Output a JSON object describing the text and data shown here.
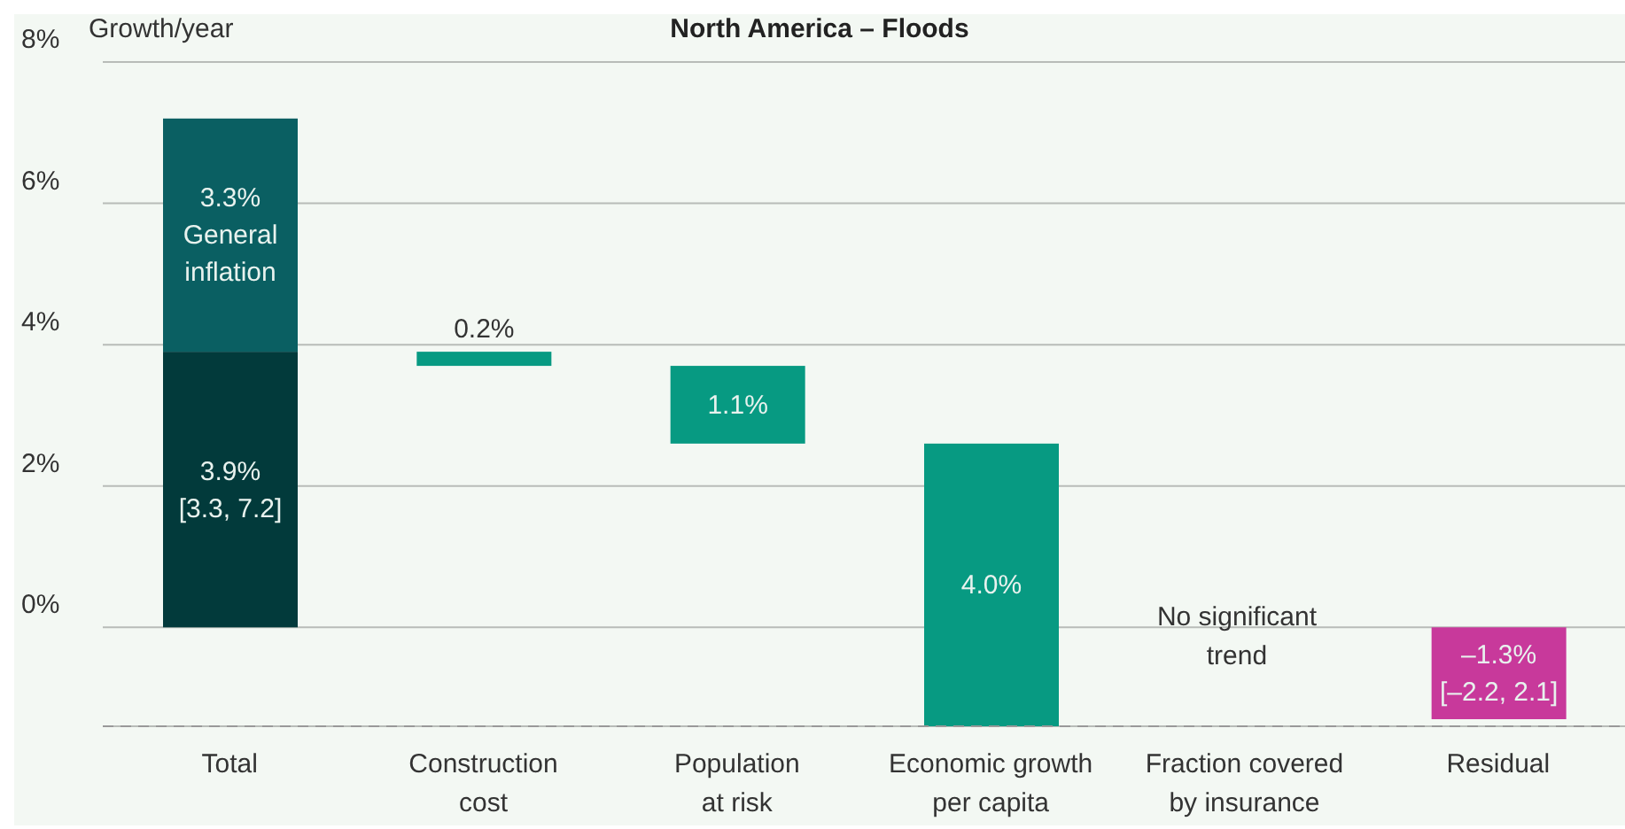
{
  "chart_data": {
    "type": "bar",
    "title": "North America – Floods",
    "ylabel": "Growth/year",
    "categories": [
      "Total",
      "Construction cost",
      "Population at risk",
      "Economic growth per capita",
      "Fraction covered by insurance",
      "Residual"
    ],
    "series": [
      {
        "color": "#023a3b",
        "colors": [
          "#023a3b",
          "#079a82",
          "#079a82",
          "#079a82",
          null,
          "#c8399b"
        ],
        "values": [
          3.9,
          0.2,
          1.1,
          4.0,
          null,
          -1.3
        ],
        "base": [
          0,
          3.7,
          2.6,
          -1.4,
          null,
          0
        ],
        "value_labels": [
          "3.9%\n[3.3, 7.2]",
          "0.2%",
          "1.1%",
          "4.0%",
          null,
          "–1.3%\n[–2.2, 2.1]"
        ]
      },
      {
        "color": "#0a5f62",
        "values": [
          3.3,
          null,
          null,
          null,
          null,
          null
        ],
        "base": [
          3.9,
          null,
          null,
          null,
          null,
          null
        ],
        "value_labels": [
          "3.3%\nGeneral inflation",
          null,
          null,
          null,
          null,
          null
        ]
      }
    ],
    "ylim": [
      -1.4,
      8
    ],
    "yticks": [
      {
        "value": 0,
        "label": "0%"
      },
      {
        "value": 2,
        "label": "2%"
      },
      {
        "value": 4,
        "label": "4%"
      },
      {
        "value": 6,
        "label": "6%"
      },
      {
        "value": 8,
        "label": "8%"
      }
    ],
    "grid": "y",
    "ref_lines": [
      {
        "axis": "y",
        "value": -1.4,
        "label": null,
        "color": "#999999",
        "line_style": "dashed"
      }
    ],
    "annotations": [
      "No significant trend"
    ]
  }
}
